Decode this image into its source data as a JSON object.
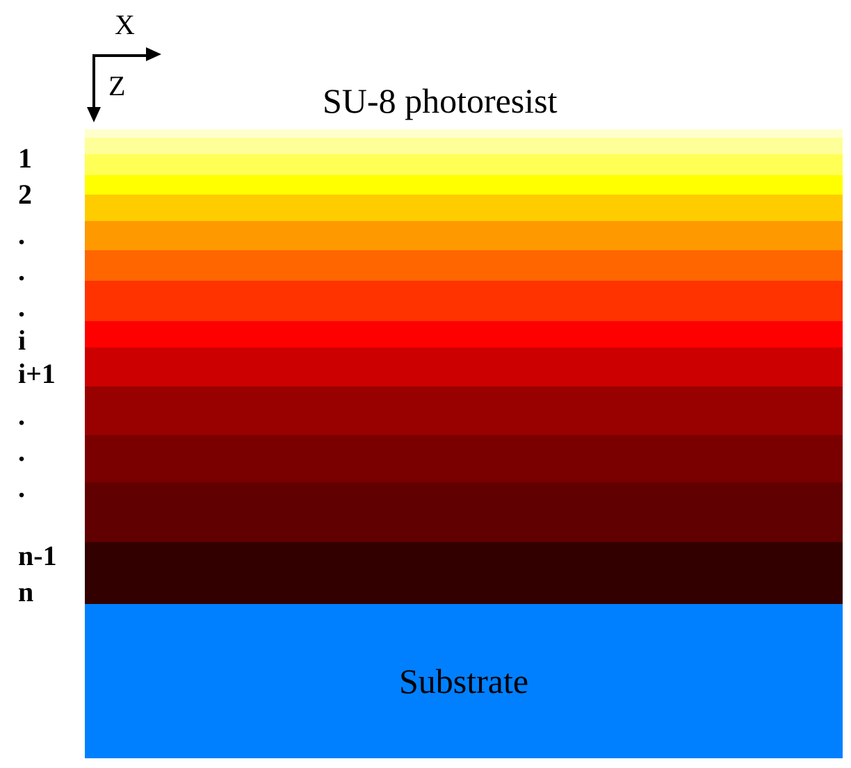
{
  "axes": {
    "x_label": "X",
    "z_label": "Z"
  },
  "title": "SU-8 photoresist",
  "substrate": {
    "label": "Substrate",
    "color": "#0080ff"
  },
  "layer_colors": [
    "#ffffcc",
    "#ffff99",
    "#ffff55",
    "#ffff00",
    "#ffcc00",
    "#ff9900",
    "#ff6600",
    "#ff3300",
    "#ff0000",
    "#cc0000",
    "#990000",
    "#7a0000",
    "#600000",
    "#330000"
  ],
  "layer_indices": [
    "1",
    "2",
    ".",
    ".",
    ".",
    "i",
    "i+1",
    ".",
    ".",
    ".",
    "n-1",
    "n"
  ]
}
